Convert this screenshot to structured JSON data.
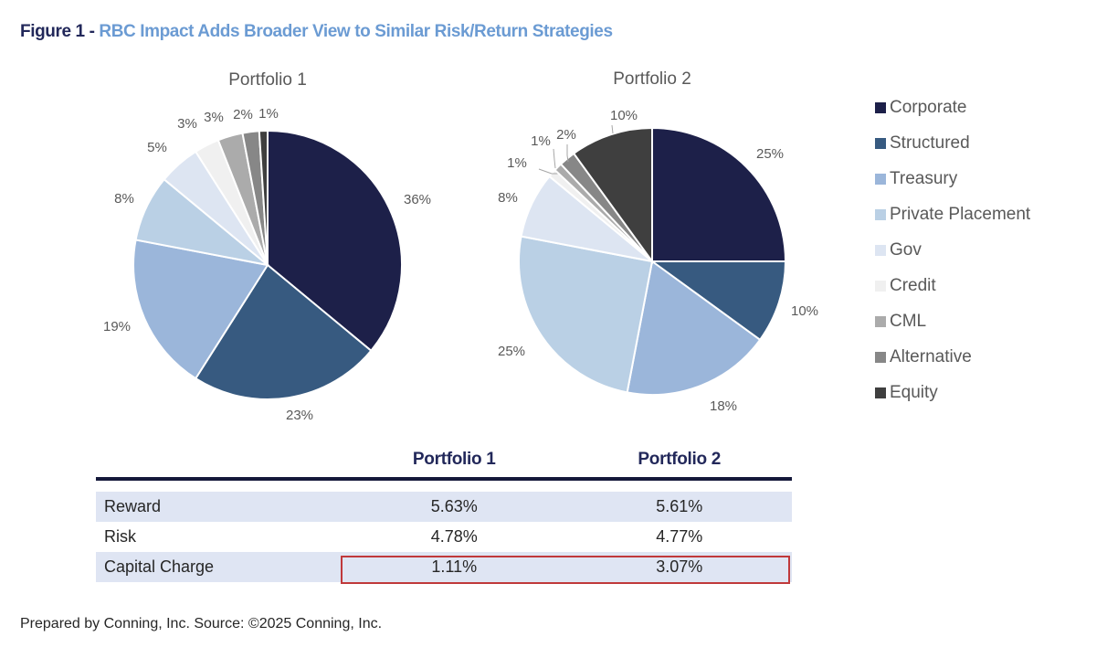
{
  "title": {
    "prefix": "Figure 1 - ",
    "text": "RBC Impact Adds Broader View to Similar Risk/Return Strategies"
  },
  "chart_data": [
    {
      "type": "pie",
      "title": "Portfolio 1",
      "categories": [
        "Corporate",
        "Structured",
        "Treasury",
        "Private Placement",
        "Gov",
        "Credit",
        "CML",
        "Alternative",
        "Equity"
      ],
      "values": [
        36,
        23,
        19,
        8,
        5,
        3,
        3,
        2,
        1
      ],
      "labels": [
        "36%",
        "23%",
        "19%",
        "8%",
        "5%",
        "3%",
        "3%",
        "2%",
        "1%"
      ],
      "start": "12 o'clock",
      "direction": "clockwise"
    },
    {
      "type": "pie",
      "title": "Portfolio 2",
      "categories": [
        "Corporate",
        "Structured",
        "Treasury",
        "Private Placement",
        "Gov",
        "Credit",
        "CML",
        "Alternative",
        "Equity"
      ],
      "values": [
        25,
        10,
        18,
        25,
        8,
        1,
        1,
        2,
        10
      ],
      "labels": [
        "25%",
        "10%",
        "18%",
        "25%",
        "8%",
        "1%",
        "1%",
        "2%",
        "10%"
      ],
      "start": "12 o'clock",
      "direction": "clockwise"
    }
  ],
  "legend": {
    "placement": "right",
    "items": [
      {
        "label": "Corporate",
        "color": "#1d2049"
      },
      {
        "label": "Structured",
        "color": "#375a80"
      },
      {
        "label": "Treasury",
        "color": "#9bb6da"
      },
      {
        "label": "Private Placement",
        "color": "#bad0e5"
      },
      {
        "label": "Gov",
        "color": "#dde5f2"
      },
      {
        "label": "Credit",
        "color": "#f0f0f0"
      },
      {
        "label": "CML",
        "color": "#ababab"
      },
      {
        "label": "Alternative",
        "color": "#878787"
      },
      {
        "label": "Equity",
        "color": "#3f3f3f"
      }
    ]
  },
  "table": {
    "headers": [
      "",
      "Portfolio 1",
      "Portfolio 2"
    ],
    "rows": [
      {
        "label": "Reward",
        "p1": "5.63%",
        "p2": "5.61%"
      },
      {
        "label": "Risk",
        "p1": "4.78%",
        "p2": "4.77%"
      },
      {
        "label": "Capital Charge",
        "p1": "1.11%",
        "p2": "3.07%"
      }
    ],
    "highlight_color": "#c0393b",
    "highlighted_row": "Capital Charge"
  },
  "footer": "Prepared by Conning, Inc. Source: ©2025 Conning, Inc."
}
